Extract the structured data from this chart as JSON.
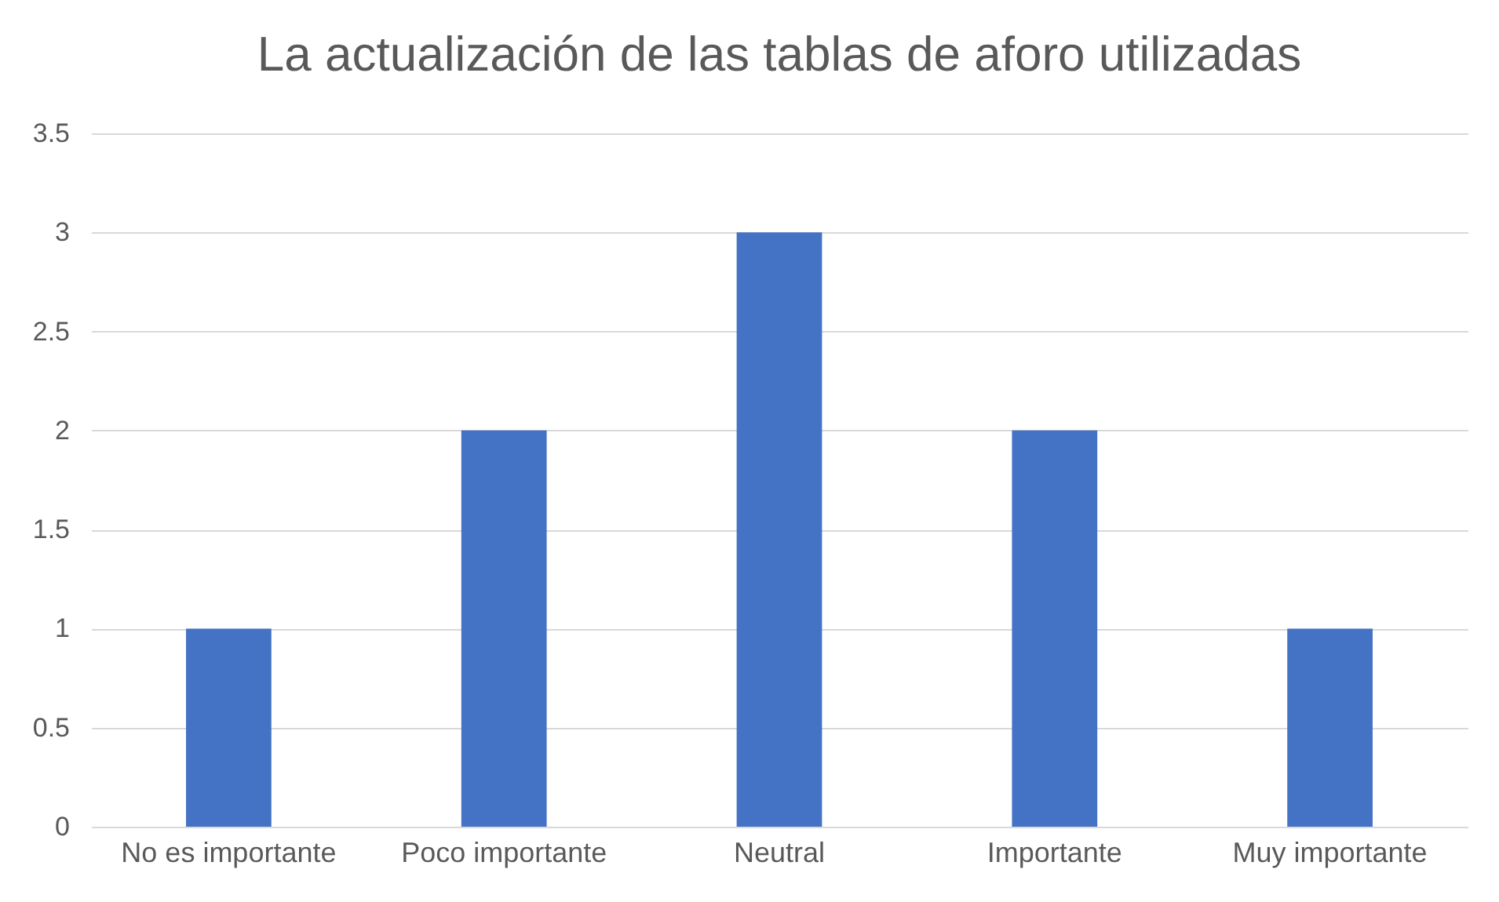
{
  "chart_data": {
    "type": "bar",
    "title": "La actualización de las tablas de aforo utilizadas",
    "categories": [
      "No es importante",
      "Poco importante",
      "Neutral",
      "Importante",
      "Muy importante"
    ],
    "values": [
      1,
      2,
      3,
      2,
      1
    ],
    "color": "#4472c4",
    "ylim": [
      0,
      3.5
    ],
    "yticks": [
      0,
      0.5,
      1,
      1.5,
      2,
      2.5,
      3,
      3.5
    ],
    "grid": "y"
  }
}
